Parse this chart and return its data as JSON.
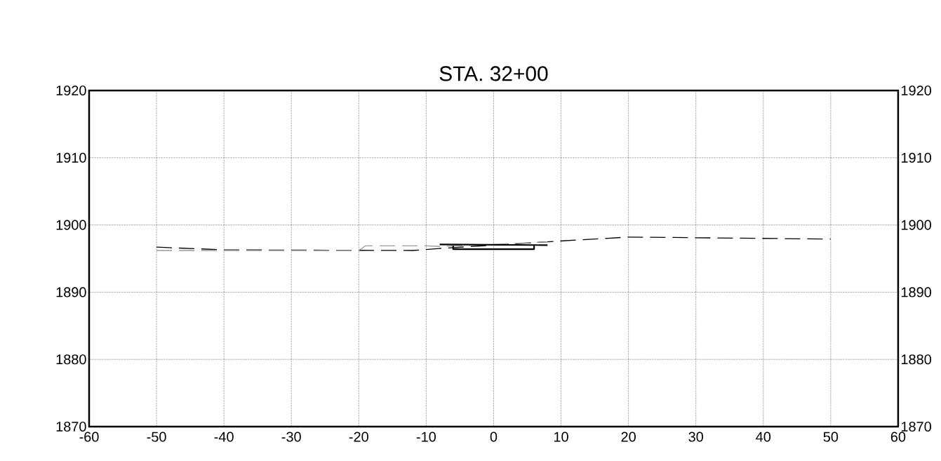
{
  "chart_data": {
    "type": "line",
    "title": "STA. 32+00",
    "xlim": [
      -60,
      60
    ],
    "xticks": [
      -60,
      -50,
      -40,
      -30,
      -20,
      -10,
      0,
      10,
      20,
      30,
      40,
      50,
      60
    ],
    "ylim": [
      1870,
      1920
    ],
    "yticks": [
      1870,
      1880,
      1890,
      1900,
      1910,
      1920
    ],
    "y2lim": [
      1870,
      1920
    ],
    "y2ticks": [
      1870,
      1880,
      1890,
      1900,
      1910,
      1920
    ],
    "grid": true,
    "marker": "none",
    "series": [
      {
        "color": "#000000",
        "line_style": "dashed",
        "x": [
          -50,
          -40,
          -12,
          -8,
          0,
          8,
          20,
          50
        ],
        "values": [
          1896.7,
          1896.3,
          1896.2,
          1896.5,
          1897.0,
          1897.5,
          1898.2,
          1897.9
        ]
      },
      {
        "color": "#999999",
        "line_style": "dashed",
        "x": [
          -50,
          -20,
          -19,
          -10,
          -8,
          0,
          8
        ],
        "values": [
          1896.2,
          1896.2,
          1896.9,
          1896.9,
          1896.8,
          1897.1,
          1897.5
        ]
      },
      {
        "color": "#000000",
        "line_style": "solid",
        "x": [
          -8,
          8
        ],
        "values": [
          1897.1,
          1897.0
        ]
      },
      {
        "color": "#000000",
        "line_style": "solid",
        "x": [
          -6,
          -6,
          6,
          6
        ],
        "values": [
          1896.9,
          1896.4,
          1896.4,
          1896.9
        ]
      }
    ]
  }
}
